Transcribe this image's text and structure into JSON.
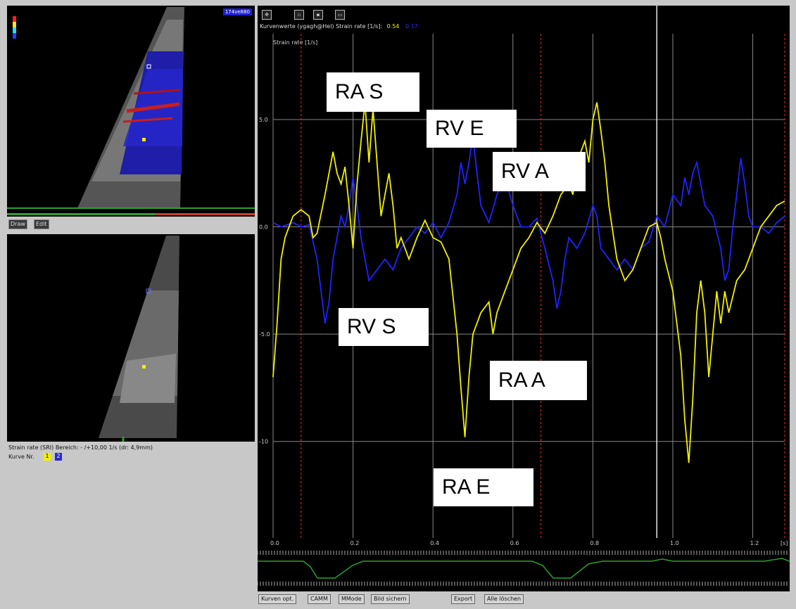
{
  "colors": {
    "rv_curve": "#2222ff",
    "ra_curve": "#f0f000",
    "ecg": "#2e9e2e",
    "grid": "#888888",
    "marker": "#d02020",
    "cursor": "#e8e8e8"
  },
  "top_view": {
    "tag": "174ve880",
    "buttons": {
      "draw": "Draw",
      "edit": "Edit"
    }
  },
  "info": {
    "strain_line": "Strain rate (SRI) Bereich: - /+10,00 1/s (dr: 4,9mm)",
    "curves_label": "Kurve Nr."
  },
  "legend": {
    "curve1": "1",
    "curve2": "2"
  },
  "toolbar": {
    "icons": [
      "layout-icon",
      "tool-1-icon",
      "tool-2-icon",
      "tool-3-icon"
    ],
    "curve_title": "Kurvenwerte (ygagh@Hel) Strain rate [1/s]:",
    "value_yellow": "0.54",
    "value_blue": "0.17"
  },
  "chart_data": {
    "type": "line",
    "ylabel": "Strain rate [1/s]",
    "x_unit": "[s]",
    "xlim": [
      0,
      1.28
    ],
    "ylim": [
      -14.5,
      9
    ],
    "x_ticks": [
      0.0,
      0.2,
      0.4,
      0.6,
      0.8,
      1.0,
      1.2
    ],
    "x_tick_labels": [
      "0.0",
      "0.2",
      "0.4",
      "0.6",
      "0.8",
      "1.0",
      "1.2"
    ],
    "y_ticks": [
      5,
      0,
      -5,
      -10
    ],
    "y_tick_labels": [
      "5.0",
      "0.0",
      "-5.0",
      "-10"
    ],
    "markers": [
      0.07,
      0.67,
      1.28
    ],
    "cursor": 0.96,
    "series": [
      {
        "values": [
          [
            0,
            0.2
          ],
          [
            0.02,
            0
          ],
          [
            0.05,
            0.2
          ],
          [
            0.07,
            0
          ],
          [
            0.09,
            0.1
          ],
          [
            0.11,
            -1.5
          ],
          [
            0.12,
            -3
          ],
          [
            0.13,
            -4.5
          ],
          [
            0.14,
            -3.5
          ],
          [
            0.15,
            -1.5
          ],
          [
            0.16,
            -0.5
          ],
          [
            0.17,
            0.5
          ],
          [
            0.18,
            0
          ],
          [
            0.19,
            1
          ],
          [
            0.2,
            2.3
          ],
          [
            0.21,
            1
          ],
          [
            0.22,
            -0.5
          ],
          [
            0.23,
            -1.5
          ],
          [
            0.24,
            -2.5
          ],
          [
            0.26,
            -2
          ],
          [
            0.28,
            -1.5
          ],
          [
            0.3,
            -2
          ],
          [
            0.32,
            -1
          ],
          [
            0.34,
            -0.5
          ],
          [
            0.36,
            0
          ],
          [
            0.38,
            -0.3
          ],
          [
            0.4,
            0.2
          ],
          [
            0.42,
            -0.5
          ],
          [
            0.44,
            0.2
          ],
          [
            0.46,
            1.5
          ],
          [
            0.47,
            3
          ],
          [
            0.48,
            2
          ],
          [
            0.49,
            3
          ],
          [
            0.5,
            4.2
          ],
          [
            0.51,
            2.5
          ],
          [
            0.52,
            1
          ],
          [
            0.54,
            0.2
          ],
          [
            0.56,
            1.5
          ],
          [
            0.58,
            2.3
          ],
          [
            0.6,
            1
          ],
          [
            0.62,
            0
          ],
          [
            0.64,
            0
          ],
          [
            0.66,
            0.4
          ],
          [
            0.68,
            -1
          ],
          [
            0.7,
            -2.5
          ],
          [
            0.71,
            -3.8
          ],
          [
            0.72,
            -3
          ],
          [
            0.73,
            -1.5
          ],
          [
            0.74,
            -0.5
          ],
          [
            0.76,
            -1
          ],
          [
            0.78,
            -0.3
          ],
          [
            0.8,
            1
          ],
          [
            0.81,
            0.5
          ],
          [
            0.82,
            -1
          ],
          [
            0.84,
            -1.5
          ],
          [
            0.86,
            -2
          ],
          [
            0.88,
            -1.5
          ],
          [
            0.9,
            -2
          ],
          [
            0.92,
            -1
          ],
          [
            0.94,
            -0.7
          ],
          [
            0.96,
            0.5
          ],
          [
            0.98,
            0
          ],
          [
            1.0,
            1.5
          ],
          [
            1.02,
            1
          ],
          [
            1.03,
            2.3
          ],
          [
            1.04,
            1.5
          ],
          [
            1.05,
            2.5
          ],
          [
            1.06,
            3
          ],
          [
            1.07,
            2
          ],
          [
            1.08,
            1
          ],
          [
            1.1,
            0.5
          ],
          [
            1.12,
            -1
          ],
          [
            1.13,
            -2.5
          ],
          [
            1.14,
            -2
          ],
          [
            1.15,
            0
          ],
          [
            1.16,
            1.5
          ],
          [
            1.17,
            3.2
          ],
          [
            1.18,
            2
          ],
          [
            1.19,
            0.5
          ],
          [
            1.2,
            0
          ],
          [
            1.22,
            0
          ],
          [
            1.24,
            -0.3
          ],
          [
            1.26,
            0.2
          ],
          [
            1.28,
            0.5
          ]
        ]
      },
      {
        "values": [
          [
            0,
            -7
          ],
          [
            0.01,
            -4.5
          ],
          [
            0.02,
            -1.5
          ],
          [
            0.03,
            -0.5
          ],
          [
            0.05,
            0.5
          ],
          [
            0.07,
            0.8
          ],
          [
            0.09,
            0.5
          ],
          [
            0.1,
            -0.5
          ],
          [
            0.11,
            -0.3
          ],
          [
            0.13,
            1.5
          ],
          [
            0.14,
            2.5
          ],
          [
            0.15,
            3.5
          ],
          [
            0.16,
            2.5
          ],
          [
            0.17,
            2
          ],
          [
            0.18,
            2.8
          ],
          [
            0.19,
            1
          ],
          [
            0.2,
            -1
          ],
          [
            0.21,
            2
          ],
          [
            0.22,
            4
          ],
          [
            0.23,
            5.8
          ],
          [
            0.24,
            3
          ],
          [
            0.25,
            5.5
          ],
          [
            0.26,
            3
          ],
          [
            0.27,
            0.5
          ],
          [
            0.28,
            1.5
          ],
          [
            0.29,
            2.5
          ],
          [
            0.3,
            1
          ],
          [
            0.31,
            -1
          ],
          [
            0.32,
            -0.5
          ],
          [
            0.34,
            -1.5
          ],
          [
            0.36,
            -0.5
          ],
          [
            0.38,
            0.3
          ],
          [
            0.4,
            -0.5
          ],
          [
            0.42,
            -0.7
          ],
          [
            0.44,
            -1.5
          ],
          [
            0.46,
            -5
          ],
          [
            0.47,
            -7.5
          ],
          [
            0.48,
            -9.8
          ],
          [
            0.49,
            -7
          ],
          [
            0.5,
            -5
          ],
          [
            0.52,
            -4
          ],
          [
            0.54,
            -3.5
          ],
          [
            0.55,
            -5
          ],
          [
            0.56,
            -4
          ],
          [
            0.58,
            -3
          ],
          [
            0.6,
            -2
          ],
          [
            0.62,
            -1
          ],
          [
            0.64,
            -0.5
          ],
          [
            0.66,
            0.2
          ],
          [
            0.68,
            -0.3
          ],
          [
            0.7,
            0.5
          ],
          [
            0.72,
            1.5
          ],
          [
            0.74,
            2
          ],
          [
            0.75,
            1.5
          ],
          [
            0.76,
            2.8
          ],
          [
            0.77,
            3.5
          ],
          [
            0.78,
            4
          ],
          [
            0.79,
            3
          ],
          [
            0.8,
            5
          ],
          [
            0.81,
            5.8
          ],
          [
            0.82,
            4.5
          ],
          [
            0.83,
            3
          ],
          [
            0.84,
            1
          ],
          [
            0.86,
            -1.5
          ],
          [
            0.88,
            -2.5
          ],
          [
            0.9,
            -2
          ],
          [
            0.92,
            -1
          ],
          [
            0.94,
            0
          ],
          [
            0.96,
            0.2
          ],
          [
            0.97,
            -0.5
          ],
          [
            0.98,
            -1.5
          ],
          [
            1.0,
            -3
          ],
          [
            1.02,
            -6
          ],
          [
            1.03,
            -9
          ],
          [
            1.04,
            -11
          ],
          [
            1.05,
            -8
          ],
          [
            1.06,
            -4
          ],
          [
            1.07,
            -2.5
          ],
          [
            1.08,
            -4
          ],
          [
            1.09,
            -7
          ],
          [
            1.1,
            -5
          ],
          [
            1.11,
            -3
          ],
          [
            1.12,
            -4.5
          ],
          [
            1.13,
            -3
          ],
          [
            1.14,
            -4
          ],
          [
            1.16,
            -2.5
          ],
          [
            1.18,
            -2
          ],
          [
            1.2,
            -1
          ],
          [
            1.22,
            0
          ],
          [
            1.24,
            0.5
          ],
          [
            1.26,
            1
          ],
          [
            1.28,
            1.2
          ]
        ]
      }
    ]
  },
  "annotations": [
    {
      "text": "RA S"
    },
    {
      "text": "RV E"
    },
    {
      "text": "RV A"
    },
    {
      "text": "RV S"
    },
    {
      "text": "RA A"
    },
    {
      "text": "RA E"
    }
  ],
  "bottom_buttons": {
    "curve_opt": "Kurven opt.",
    "camm": "CAMM",
    "mmode": "MMode",
    "save_image": "Bild sichern",
    "export": "Export",
    "delete_all": "Alle löschen"
  }
}
